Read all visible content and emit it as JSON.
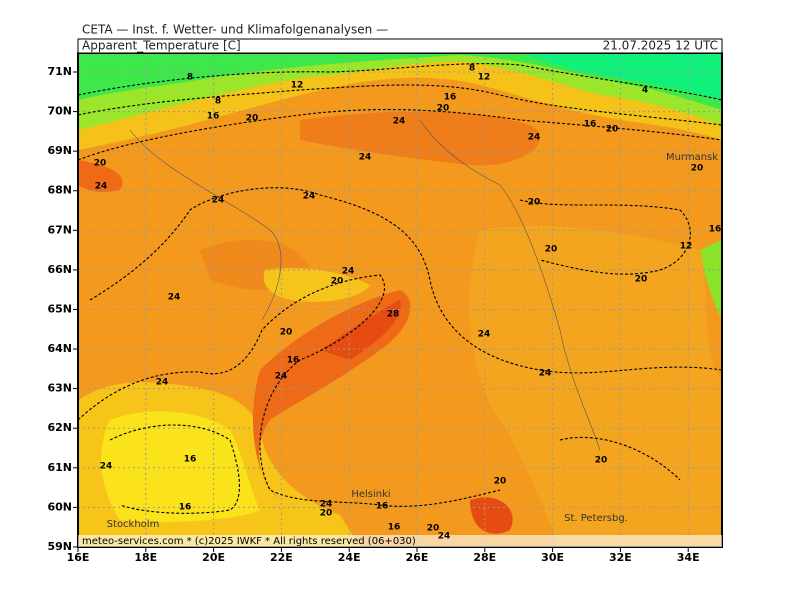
{
  "header": {
    "institute": "CETA — Inst. f. Wetter- und Klimafolgenanalysen —",
    "variable": "Apparent_Temperature [C]",
    "time": "21.07.2025 12 UTC"
  },
  "axes": {
    "lon_labels": [
      "16E",
      "18E",
      "20E",
      "22E",
      "24E",
      "26E",
      "28E",
      "30E",
      "32E",
      "34E"
    ],
    "lat_labels": [
      "71N",
      "70N",
      "69N",
      "68N",
      "67N",
      "66N",
      "65N",
      "64N",
      "63N",
      "62N",
      "61N",
      "60N",
      "59N"
    ]
  },
  "places": [
    "Murmansk",
    "Helsinki",
    "Stockholm",
    "St. Petersbg."
  ],
  "contour_labels": [
    8,
    12,
    8,
    12,
    8,
    16,
    20,
    16,
    20,
    24,
    4,
    16,
    20,
    20,
    24,
    24,
    24,
    20,
    24,
    24,
    20,
    20,
    16,
    12,
    24,
    20,
    20,
    24,
    28,
    20,
    24,
    16,
    24,
    24,
    24,
    16,
    20,
    24,
    20,
    16,
    24,
    20,
    16,
    16,
    20,
    24
  ],
  "footer": "meteo-services.com * (c)2025 IWKF * All rights reserved (06+030)"
}
